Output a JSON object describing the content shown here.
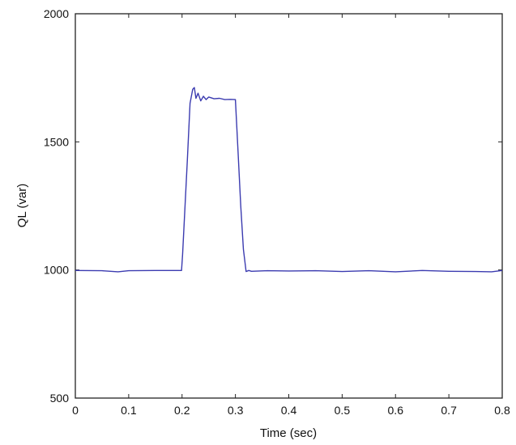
{
  "chart_data": {
    "type": "line",
    "title": "",
    "xlabel": "Time (sec)",
    "ylabel": "QL (var)",
    "xlim": [
      0,
      0.8
    ],
    "ylim": [
      500,
      2000
    ],
    "x_ticks": [
      0,
      0.1,
      0.2,
      0.3,
      0.4,
      0.5,
      0.6,
      0.7,
      0.8
    ],
    "x_tick_labels": [
      "0",
      "0.1",
      "0.2",
      "0.3",
      "0.4",
      "0.5",
      "0.6",
      "0.7",
      "0.8"
    ],
    "y_ticks": [
      500,
      1000,
      1500,
      2000
    ],
    "y_tick_labels": [
      "500",
      "1000",
      "1500",
      "2000"
    ],
    "grid": false,
    "legend": "none",
    "series": [
      {
        "color": "#3b3bb0",
        "x": [
          0,
          0.05,
          0.08,
          0.1,
          0.15,
          0.199,
          0.201,
          0.21,
          0.215,
          0.22,
          0.223,
          0.226,
          0.23,
          0.235,
          0.24,
          0.245,
          0.25,
          0.26,
          0.27,
          0.28,
          0.29,
          0.3,
          0.305,
          0.31,
          0.315,
          0.32,
          0.325,
          0.33,
          0.36,
          0.4,
          0.45,
          0.5,
          0.55,
          0.6,
          0.65,
          0.7,
          0.75,
          0.78,
          0.8
        ],
        "y": [
          998,
          997,
          993,
          997,
          998,
          998,
          1060,
          1430,
          1650,
          1705,
          1712,
          1670,
          1690,
          1660,
          1678,
          1665,
          1675,
          1668,
          1670,
          1665,
          1666,
          1665,
          1460,
          1250,
          1080,
          994,
          998,
          995,
          997,
          996,
          997,
          994,
          997,
          993,
          998,
          995,
          994,
          993,
          998
        ]
      }
    ]
  }
}
